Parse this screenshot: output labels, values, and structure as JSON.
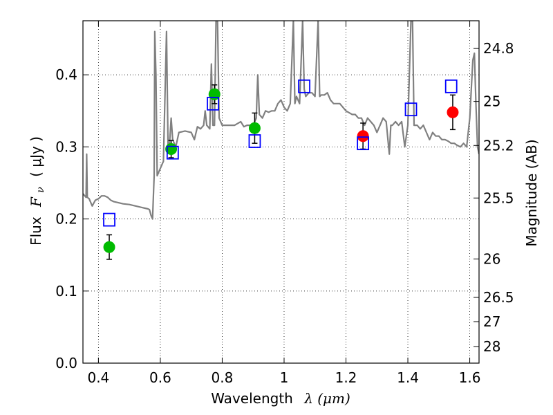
{
  "chart_data": {
    "type": "scatter",
    "xlabel": "Wavelength",
    "xlabel_math": "λ (μm)",
    "ylabel": "Flux",
    "ylabel_math": "F",
    "ylabel_sub": "ν",
    "ylabel_unit": "( μJy )",
    "y2label": "Magnitude (AB)",
    "xlim": [
      0.35,
      1.63
    ],
    "ylim": [
      0.0,
      0.475
    ],
    "grid": true,
    "x_ticks": [
      0.4,
      0.6,
      0.8,
      1.0,
      1.2,
      1.4,
      1.6
    ],
    "x_tick_labels": [
      "0.4",
      "0.6",
      "0.8",
      "1",
      "1.2",
      "1.4",
      "1.6"
    ],
    "y_ticks": [
      0.0,
      0.1,
      0.2,
      0.3,
      0.4
    ],
    "y_tick_labels": [
      "0.0",
      "0.1",
      "0.2",
      "0.3",
      "0.4"
    ],
    "y2_ticks": [
      {
        "label": "24.8",
        "mag": 24.8
      },
      {
        "label": "25",
        "mag": 25.0
      },
      {
        "label": "25.2",
        "mag": 25.2
      },
      {
        "label": "25.5",
        "mag": 25.5
      },
      {
        "label": "26",
        "mag": 26.0
      },
      {
        "label": "26.5",
        "mag": 26.5
      },
      {
        "label": "27",
        "mag": 27.0
      },
      {
        "label": "28",
        "mag": 28.0
      }
    ],
    "model_color": "#808080",
    "model_spectrum": [
      [
        0.35,
        0.235
      ],
      [
        0.36,
        0.23
      ],
      [
        0.362,
        0.29
      ],
      [
        0.364,
        0.23
      ],
      [
        0.37,
        0.228
      ],
      [
        0.38,
        0.218
      ],
      [
        0.39,
        0.226
      ],
      [
        0.4,
        0.228
      ],
      [
        0.41,
        0.232
      ],
      [
        0.42,
        0.232
      ],
      [
        0.43,
        0.23
      ],
      [
        0.44,
        0.226
      ],
      [
        0.45,
        0.224
      ],
      [
        0.46,
        0.223
      ],
      [
        0.48,
        0.221
      ],
      [
        0.5,
        0.22
      ],
      [
        0.52,
        0.218
      ],
      [
        0.54,
        0.216
      ],
      [
        0.56,
        0.214
      ],
      [
        0.565,
        0.213
      ],
      [
        0.57,
        0.205
      ],
      [
        0.575,
        0.2
      ],
      [
        0.58,
        0.26
      ],
      [
        0.582,
        0.46
      ],
      [
        0.586,
        0.4
      ],
      [
        0.59,
        0.26
      ],
      [
        0.6,
        0.27
      ],
      [
        0.61,
        0.28
      ],
      [
        0.62,
        0.46
      ],
      [
        0.625,
        0.3
      ],
      [
        0.63,
        0.305
      ],
      [
        0.635,
        0.34
      ],
      [
        0.64,
        0.31
      ],
      [
        0.65,
        0.3
      ],
      [
        0.66,
        0.32
      ],
      [
        0.68,
        0.322
      ],
      [
        0.7,
        0.32
      ],
      [
        0.71,
        0.31
      ],
      [
        0.72,
        0.328
      ],
      [
        0.73,
        0.325
      ],
      [
        0.74,
        0.33
      ],
      [
        0.745,
        0.35
      ],
      [
        0.75,
        0.33
      ],
      [
        0.76,
        0.325
      ],
      [
        0.765,
        0.415
      ],
      [
        0.77,
        0.33
      ],
      [
        0.775,
        0.33
      ],
      [
        0.78,
        0.475
      ],
      [
        0.785,
        0.475
      ],
      [
        0.79,
        0.34
      ],
      [
        0.8,
        0.33
      ],
      [
        0.82,
        0.33
      ],
      [
        0.84,
        0.33
      ],
      [
        0.86,
        0.335
      ],
      [
        0.87,
        0.328
      ],
      [
        0.88,
        0.33
      ],
      [
        0.9,
        0.33
      ],
      [
        0.91,
        0.34
      ],
      [
        0.915,
        0.4
      ],
      [
        0.92,
        0.345
      ],
      [
        0.93,
        0.34
      ],
      [
        0.94,
        0.35
      ],
      [
        0.95,
        0.348
      ],
      [
        0.96,
        0.35
      ],
      [
        0.97,
        0.35
      ],
      [
        0.98,
        0.36
      ],
      [
        0.99,
        0.365
      ],
      [
        1.0,
        0.355
      ],
      [
        1.01,
        0.35
      ],
      [
        1.02,
        0.36
      ],
      [
        1.03,
        0.475
      ],
      [
        1.035,
        0.36
      ],
      [
        1.04,
        0.37
      ],
      [
        1.05,
        0.36
      ],
      [
        1.06,
        0.475
      ],
      [
        1.065,
        0.38
      ],
      [
        1.07,
        0.37
      ],
      [
        1.08,
        0.375
      ],
      [
        1.09,
        0.375
      ],
      [
        1.1,
        0.37
      ],
      [
        1.11,
        0.475
      ],
      [
        1.115,
        0.37
      ],
      [
        1.12,
        0.372
      ],
      [
        1.13,
        0.372
      ],
      [
        1.14,
        0.375
      ],
      [
        1.15,
        0.365
      ],
      [
        1.16,
        0.36
      ],
      [
        1.18,
        0.36
      ],
      [
        1.2,
        0.35
      ],
      [
        1.22,
        0.345
      ],
      [
        1.23,
        0.345
      ],
      [
        1.24,
        0.34
      ],
      [
        1.25,
        0.34
      ],
      [
        1.26,
        0.33
      ],
      [
        1.27,
        0.34
      ],
      [
        1.28,
        0.335
      ],
      [
        1.29,
        0.33
      ],
      [
        1.3,
        0.32
      ],
      [
        1.31,
        0.33
      ],
      [
        1.32,
        0.34
      ],
      [
        1.33,
        0.335
      ],
      [
        1.34,
        0.29
      ],
      [
        1.345,
        0.33
      ],
      [
        1.35,
        0.33
      ],
      [
        1.36,
        0.335
      ],
      [
        1.37,
        0.33
      ],
      [
        1.38,
        0.335
      ],
      [
        1.39,
        0.3
      ],
      [
        1.4,
        0.33
      ],
      [
        1.41,
        0.475
      ],
      [
        1.415,
        0.475
      ],
      [
        1.42,
        0.33
      ],
      [
        1.43,
        0.33
      ],
      [
        1.44,
        0.325
      ],
      [
        1.45,
        0.33
      ],
      [
        1.46,
        0.32
      ],
      [
        1.47,
        0.31
      ],
      [
        1.48,
        0.32
      ],
      [
        1.49,
        0.315
      ],
      [
        1.5,
        0.315
      ],
      [
        1.51,
        0.31
      ],
      [
        1.52,
        0.31
      ],
      [
        1.53,
        0.308
      ],
      [
        1.54,
        0.305
      ],
      [
        1.55,
        0.305
      ],
      [
        1.56,
        0.302
      ],
      [
        1.57,
        0.3
      ],
      [
        1.58,
        0.305
      ],
      [
        1.59,
        0.3
      ],
      [
        1.6,
        0.34
      ],
      [
        1.61,
        0.42
      ],
      [
        1.615,
        0.43
      ],
      [
        1.62,
        0.36
      ],
      [
        1.625,
        0.3
      ],
      [
        1.63,
        0.29
      ]
    ],
    "observed": [
      {
        "x": 0.435,
        "y": 0.161,
        "err": 0.017,
        "color": "#00bb00"
      },
      {
        "x": 0.635,
        "y": 0.297,
        "err": 0.012,
        "color": "#00bb00"
      },
      {
        "x": 0.775,
        "y": 0.373,
        "err": 0.013,
        "color": "#00bb00"
      },
      {
        "x": 0.905,
        "y": 0.326,
        "err": 0.021,
        "color": "#00bb00"
      },
      {
        "x": 1.255,
        "y": 0.315,
        "err": 0.018,
        "color": "#ff0000"
      },
      {
        "x": 1.545,
        "y": 0.348,
        "err": 0.024,
        "color": "#ff0000"
      }
    ],
    "model_photometry": [
      {
        "x": 0.435,
        "y": 0.199
      },
      {
        "x": 0.64,
        "y": 0.292
      },
      {
        "x": 0.77,
        "y": 0.36
      },
      {
        "x": 0.905,
        "y": 0.308
      },
      {
        "x": 1.065,
        "y": 0.384
      },
      {
        "x": 1.255,
        "y": 0.305
      },
      {
        "x": 1.41,
        "y": 0.352
      },
      {
        "x": 1.54,
        "y": 0.384
      }
    ],
    "marker_colors": {
      "green": "#00bb00",
      "red": "#ff0000",
      "model_box": "#0000ff"
    }
  }
}
